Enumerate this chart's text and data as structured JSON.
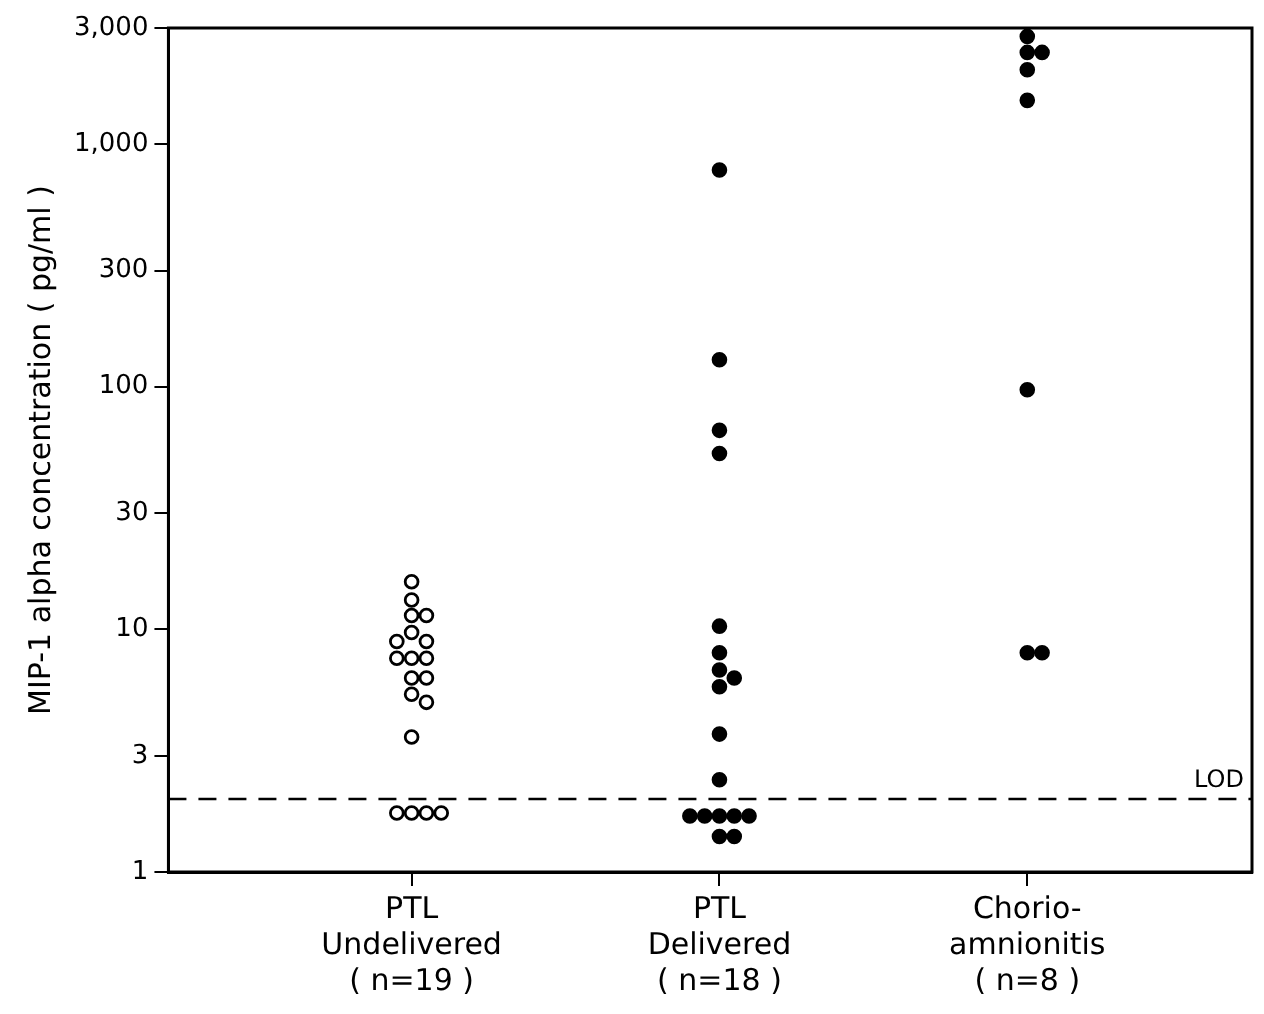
{
  "chart_data": {
    "type": "scatter",
    "ylabel": "MIP-1 alpha concentration ( pg/ml )",
    "categories": [
      "PTL\nUndelivered\n( n=19 )",
      "PTL\nDelivered\n( n=18 )",
      "Chorio-\namnionitis\n( n=8 )"
    ],
    "series": [
      {
        "color": "#ffffff",
        "x": [
          "PTL\nUndelivered\n( n=19 )",
          "PTL\nUndelivered\n( n=19 )",
          "PTL\nUndelivered\n( n=19 )",
          "PTL\nUndelivered\n( n=19 )",
          "PTL\nUndelivered\n( n=19 )",
          "PTL\nUndelivered\n( n=19 )",
          "PTL\nUndelivered\n( n=19 )",
          "PTL\nUndelivered\n( n=19 )",
          "PTL\nUndelivered\n( n=19 )",
          "PTL\nUndelivered\n( n=19 )",
          "PTL\nUndelivered\n( n=19 )",
          "PTL\nUndelivered\n( n=19 )",
          "PTL\nUndelivered\n( n=19 )",
          "PTL\nUndelivered\n( n=19 )",
          "PTL\nUndelivered\n( n=19 )",
          "PTL\nUndelivered\n( n=19 )",
          "PTL\nUndelivered\n( n=19 )",
          "PTL\nUndelivered\n( n=19 )",
          "PTL\nUndelivered\n( n=19 )"
        ],
        "values": [
          15.7,
          13.2,
          11.4,
          11.4,
          9.7,
          8.9,
          8.9,
          7.6,
          7.6,
          7.6,
          6.3,
          6.3,
          5.4,
          5.0,
          3.6,
          1.75,
          1.75,
          1.75,
          1.75
        ]
      },
      {
        "color": "#000000",
        "x": [
          "PTL\nDelivered\n( n=18 )",
          "PTL\nDelivered\n( n=18 )",
          "PTL\nDelivered\n( n=18 )",
          "PTL\nDelivered\n( n=18 )",
          "PTL\nDelivered\n( n=18 )",
          "PTL\nDelivered\n( n=18 )",
          "PTL\nDelivered\n( n=18 )",
          "PTL\nDelivered\n( n=18 )",
          "PTL\nDelivered\n( n=18 )",
          "PTL\nDelivered\n( n=18 )",
          "PTL\nDelivered\n( n=18 )",
          "PTL\nDelivered\n( n=18 )",
          "PTL\nDelivered\n( n=18 )",
          "PTL\nDelivered\n( n=18 )",
          "PTL\nDelivered\n( n=18 )",
          "PTL\nDelivered\n( n=18 )",
          "PTL\nDelivered\n( n=18 )",
          "PTL\nDelivered\n( n=18 )"
        ],
        "values": [
          780,
          129,
          66,
          53,
          10.3,
          8.0,
          6.8,
          6.3,
          5.8,
          3.7,
          2.4,
          1.7,
          1.7,
          1.7,
          1.7,
          1.7,
          1.4,
          1.4
        ]
      },
      {
        "color": "#000000",
        "x": [
          "Chorio-\namnionitis\n( n=8 )",
          "Chorio-\namnionitis\n( n=8 )",
          "Chorio-\namnionitis\n( n=8 )",
          "Chorio-\namnionitis\n( n=8 )",
          "Chorio-\namnionitis\n( n=8 )",
          "Chorio-\namnionitis\n( n=8 )",
          "Chorio-\namnionitis\n( n=8 )",
          "Chorio-\namnionitis\n( n=8 )"
        ],
        "values": [
          2770,
          2380,
          2380,
          2020,
          1510,
          97,
          8.0,
          8.0
        ]
      }
    ],
    "log": "y",
    "ylim": [
      1,
      3000
    ],
    "yticks": [
      1,
      3,
      10,
      30,
      100,
      300,
      {
        "value": 1000,
        "label": "1,000"
      },
      {
        "value": 3000,
        "label": "3,000"
      }
    ],
    "marker": "circle",
    "ref_lines": [
      {
        "axis": "y",
        "value": 2,
        "label": "LOD",
        "line_style": "dashed",
        "color": "#000000"
      }
    ]
  }
}
